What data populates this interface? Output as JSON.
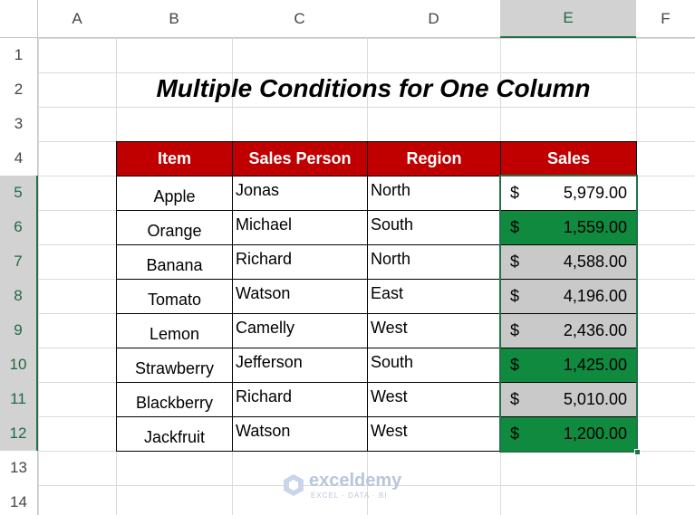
{
  "column_headers": [
    "A",
    "B",
    "C",
    "D",
    "E",
    "F"
  ],
  "row_headers": [
    "1",
    "2",
    "3",
    "4",
    "5",
    "6",
    "7",
    "8",
    "9",
    "10",
    "11",
    "12",
    "13",
    "14"
  ],
  "title": "Multiple Conditions for One Column",
  "table": {
    "header": [
      "Item",
      "Sales Person",
      "Region",
      "Sales"
    ],
    "rows": [
      [
        "Apple",
        "Jonas",
        "North",
        "$",
        "5,979.00"
      ],
      [
        "Orange",
        "Michael",
        "South",
        "$",
        "1,559.00"
      ],
      [
        "Banana",
        "Richard",
        "North",
        "$",
        "4,588.00"
      ],
      [
        "Tomato",
        "Watson",
        "East",
        "$",
        "4,196.00"
      ],
      [
        "Lemon",
        "Camelly",
        "West",
        "$",
        "2,436.00"
      ],
      [
        "Strawberry",
        "Jefferson",
        "South",
        "$",
        "1,425.00"
      ],
      [
        "Blackberry",
        "Richard",
        "West",
        "$",
        "5,010.00"
      ],
      [
        "Jackfruit",
        "Watson",
        "West",
        "$",
        "1,200.00"
      ]
    ],
    "header_fill": "#c00000",
    "row_fills": [
      "#ffffff",
      "#0f8a3f",
      "#c9c9c9",
      "#c9c9c9",
      "#c9c9c9",
      "#0f8a3f",
      "#c9c9c9",
      "#0f8a3f"
    ]
  },
  "watermark": {
    "name": "exceldemy",
    "tagline": "EXCEL · DATA · BI"
  }
}
